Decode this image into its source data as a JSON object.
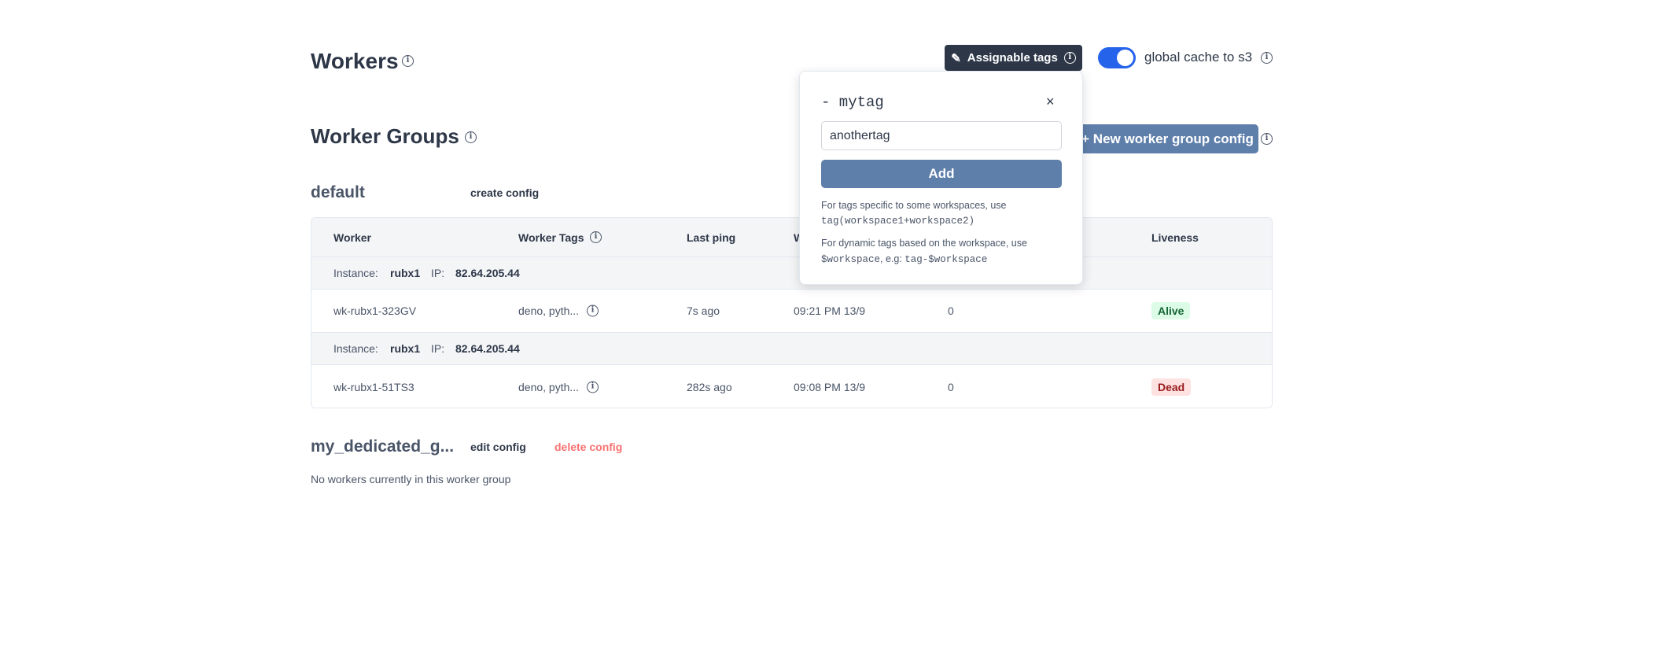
{
  "header": {
    "title": "Workers",
    "assignable_tags_label": "Assignable tags",
    "global_cache_label": "global cache to s3",
    "global_cache_enabled": true
  },
  "worker_groups": {
    "title": "Worker Groups",
    "new_config_label": "+ New worker group config"
  },
  "popover": {
    "tag_item": "- mytag",
    "input_value": "anothertag",
    "add_label": "Add",
    "help1": "For tags specific to some workspaces, use",
    "help1_code": "tag(workspace1+workspace2)",
    "help2": "For dynamic tags based on the workspace, use",
    "help2_code1": "$workspace",
    "help2_mid": ", e.g: ",
    "help2_code2": "tag-$workspace"
  },
  "groups": [
    {
      "name": "default",
      "action": "create config",
      "columns": [
        "Worker",
        "Worker Tags",
        "Last ping",
        "W",
        "",
        "Liveness"
      ],
      "instances": [
        {
          "instance_label": "Instance:",
          "instance": "rubx1",
          "ip_label": "IP:",
          "ip": "82.64.205.44",
          "worker": "wk-rubx1-323GV",
          "tags": "deno, pyth...",
          "last_ping": "7s ago",
          "started": "09:21 PM 13/9",
          "jobs": "0",
          "liveness": "Alive"
        },
        {
          "instance_label": "Instance:",
          "instance": "rubx1",
          "ip_label": "IP:",
          "ip": "82.64.205.44",
          "worker": "wk-rubx1-51TS3",
          "tags": "deno, pyth...",
          "last_ping": "282s ago",
          "started": "09:08 PM 13/9",
          "jobs": "0",
          "liveness": "Dead"
        }
      ]
    },
    {
      "name": "my_dedicated_g...",
      "edit": "edit config",
      "delete": "delete config",
      "empty": "No workers currently in this worker group"
    }
  ],
  "colors": {
    "alive_bg": "#dcfce7",
    "alive_fg": "#166534",
    "dead_bg": "#fee2e2",
    "dead_fg": "#991b1b",
    "accent": "#2563eb",
    "button": "#5f7fab",
    "delete": "#f87171"
  }
}
